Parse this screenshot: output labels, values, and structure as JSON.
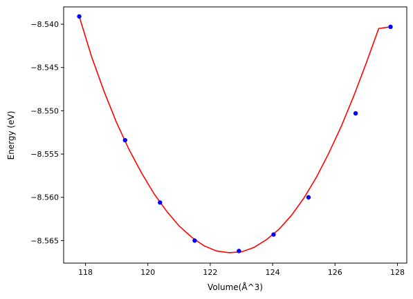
{
  "chart_data": {
    "type": "scatter",
    "title": "",
    "xlabel": "Volume(Å^3)",
    "ylabel": "Energy (eV)",
    "xlim": [
      117.3,
      128.3
    ],
    "ylim": [
      -8.5676,
      -8.538
    ],
    "grid": false,
    "legend": "none",
    "x_ticks": [
      {
        "value": 118,
        "label": "118"
      },
      {
        "value": 120,
        "label": "120"
      },
      {
        "value": 122,
        "label": "122"
      },
      {
        "value": 124,
        "label": "124"
      },
      {
        "value": 126,
        "label": "126"
      },
      {
        "value": 128,
        "label": "128"
      }
    ],
    "y_ticks": [
      {
        "value": -8.54,
        "label": "−8.540"
      },
      {
        "value": -8.545,
        "label": "−8.545"
      },
      {
        "value": -8.55,
        "label": "−8.550"
      },
      {
        "value": -8.555,
        "label": "−8.555"
      },
      {
        "value": -8.56,
        "label": "−8.560"
      },
      {
        "value": -8.565,
        "label": "−8.565"
      }
    ],
    "series": [
      {
        "kind": "points",
        "color": "#0000ff",
        "x": [
          117.8,
          119.27,
          120.39,
          121.5,
          122.92,
          124.03,
          125.15,
          126.66,
          127.78
        ],
        "y": [
          -8.5391,
          -8.5534,
          -8.5606,
          -8.565,
          -8.5662,
          -8.5643,
          -8.56,
          -8.5503,
          -8.5403
        ]
      },
      {
        "kind": "curve",
        "color": "#ff0000",
        "x": [
          117.8,
          118.2,
          118.6,
          119.0,
          119.4,
          119.8,
          120.2,
          120.6,
          121.0,
          121.4,
          121.8,
          122.2,
          122.6,
          123.0,
          123.4,
          123.8,
          124.2,
          124.6,
          125.0,
          125.4,
          125.8,
          126.2,
          126.6,
          127.0,
          127.4,
          127.78
        ],
        "y": [
          -8.5391,
          -8.5438,
          -8.5478,
          -8.5514,
          -8.5545,
          -8.5572,
          -8.5596,
          -8.5616,
          -8.5633,
          -8.5646,
          -8.5656,
          -8.5662,
          -8.5664,
          -8.5663,
          -8.5658,
          -8.5649,
          -8.5637,
          -8.5621,
          -8.5601,
          -8.5577,
          -8.5549,
          -8.5518,
          -8.5483,
          -8.5445,
          -8.5405,
          -8.5403
        ]
      }
    ]
  }
}
